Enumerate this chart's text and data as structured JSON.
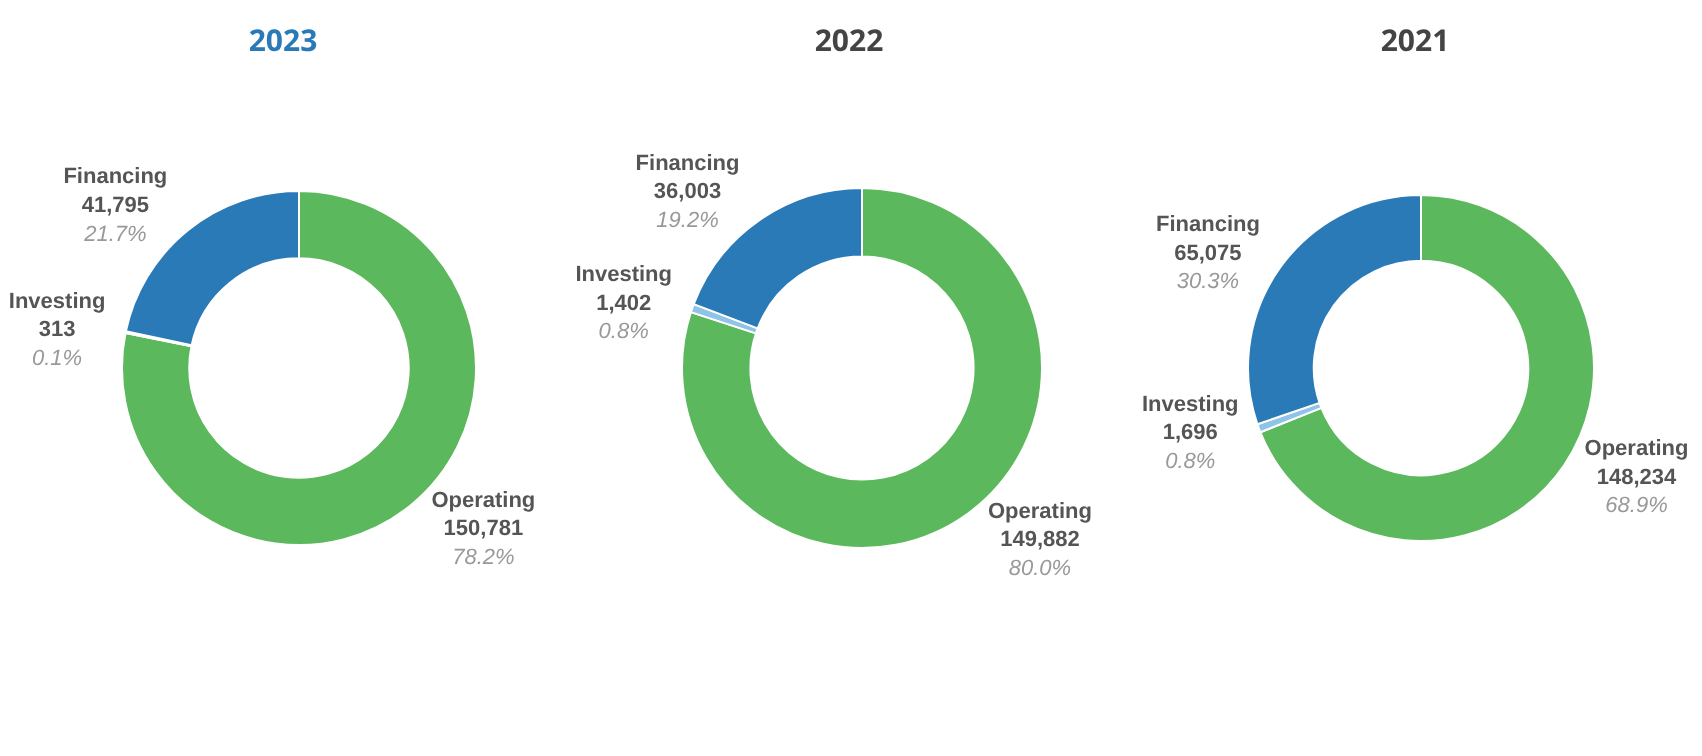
{
  "chart_data": [
    {
      "type": "donut",
      "title": "2023",
      "categories": [
        "Operating",
        "Investing",
        "Financing"
      ],
      "values": [
        150781,
        313,
        41795
      ],
      "colors": [
        "#5cb85c",
        "#8fc3e8",
        "#2a7ab8"
      ],
      "value_labels": [
        "150,781\n78.2%",
        "313\n0.1%",
        "41,795\n21.7%"
      ],
      "legend": false
    },
    {
      "type": "donut",
      "title": "2022",
      "categories": [
        "Operating",
        "Investing",
        "Financing"
      ],
      "values": [
        149882,
        1402,
        36003
      ],
      "colors": [
        "#5cb85c",
        "#8fc3e8",
        "#2a7ab8"
      ],
      "value_labels": [
        "149,882\n80.0%",
        "1,402\n0.8%",
        "36,003\n19.2%"
      ],
      "legend": false
    },
    {
      "type": "donut",
      "title": "2021",
      "categories": [
        "Operating",
        "Investing",
        "Financing"
      ],
      "values": [
        148234,
        1696,
        65075
      ],
      "colors": [
        "#5cb85c",
        "#8fc3e8",
        "#2a7ab8"
      ],
      "value_labels": [
        "148,234\n68.9%",
        "1,696\n0.8%",
        "65,075\n30.3%"
      ],
      "legend": false
    }
  ]
}
